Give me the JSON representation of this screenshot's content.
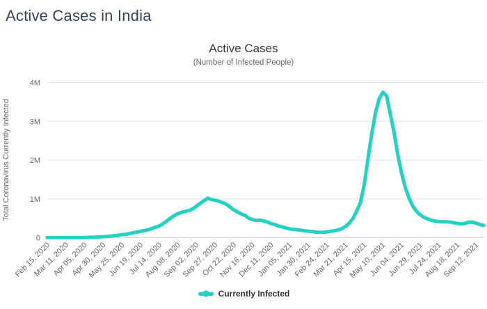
{
  "page": {
    "title": "Active Cases in India"
  },
  "colors": {
    "line": "#21d2c5",
    "page_title": "#33435c",
    "chart_title": "#333333",
    "subtitle": "#666666",
    "axis_label": "#666666",
    "grid": "#e6e6e6",
    "axis_line": "#ccd6eb",
    "legend_text": "#333333"
  },
  "chart_data": {
    "type": "line",
    "title": "Active Cases",
    "subtitle": "(Number of Infected People)",
    "ylabel": "Total Coronavirus Currently Infected",
    "ylim": [
      0,
      4000000
    ],
    "grid": true,
    "legend_position": "bottom",
    "yticks": [
      {
        "value": 0,
        "label": "0"
      },
      {
        "value": 1000000,
        "label": "1M"
      },
      {
        "value": 2000000,
        "label": "2M"
      },
      {
        "value": 3000000,
        "label": "3M"
      },
      {
        "value": 4000000,
        "label": "4M"
      }
    ],
    "xtick_every": 5,
    "xtick_labels": [
      "Feb 15, 2020",
      "Mar 11, 2020",
      "Apr 05, 2020",
      "Apr 30, 2020",
      "May 25, 2020",
      "Jun 19, 2020",
      "Jul 14, 2020",
      "Aug 08, 2020",
      "Sep 02, 2020",
      "Sep 27, 2020",
      "Oct 22, 2020",
      "Nov 16, 2020",
      "Dec 11, 2020",
      "Jan 05, 2021",
      "Jan 30, 2021",
      "Feb 24, 2021",
      "Mar 21, 2021",
      "Apr 15, 2021",
      "May 10, 2021",
      "Jun 04, 2021",
      "Jun 29, 2021",
      "Jul 24, 2021",
      "Aug 18, 2021",
      "Sep 12, 2021"
    ],
    "legend": [
      {
        "label": "Currently Infected"
      }
    ],
    "series": [
      {
        "name": "Currently Infected",
        "dates": [
          "2020-02-15",
          "2020-02-20",
          "2020-02-25",
          "2020-03-01",
          "2020-03-06",
          "2020-03-11",
          "2020-03-16",
          "2020-03-21",
          "2020-03-26",
          "2020-03-31",
          "2020-04-05",
          "2020-04-10",
          "2020-04-15",
          "2020-04-20",
          "2020-04-25",
          "2020-04-30",
          "2020-05-05",
          "2020-05-10",
          "2020-05-15",
          "2020-05-20",
          "2020-05-25",
          "2020-05-30",
          "2020-06-04",
          "2020-06-09",
          "2020-06-14",
          "2020-06-19",
          "2020-06-24",
          "2020-06-29",
          "2020-07-04",
          "2020-07-09",
          "2020-07-14",
          "2020-07-19",
          "2020-07-24",
          "2020-07-29",
          "2020-08-03",
          "2020-08-08",
          "2020-08-13",
          "2020-08-18",
          "2020-08-23",
          "2020-08-28",
          "2020-09-02",
          "2020-09-07",
          "2020-09-12",
          "2020-09-17",
          "2020-09-22",
          "2020-09-27",
          "2020-10-02",
          "2020-10-07",
          "2020-10-12",
          "2020-10-17",
          "2020-10-22",
          "2020-10-27",
          "2020-11-01",
          "2020-11-06",
          "2020-11-11",
          "2020-11-16",
          "2020-11-21",
          "2020-11-26",
          "2020-12-01",
          "2020-12-06",
          "2020-12-11",
          "2020-12-16",
          "2020-12-21",
          "2020-12-26",
          "2020-12-31",
          "2021-01-05",
          "2021-01-10",
          "2021-01-15",
          "2021-01-20",
          "2021-01-25",
          "2021-01-30",
          "2021-02-04",
          "2021-02-09",
          "2021-02-14",
          "2021-02-19",
          "2021-02-24",
          "2021-03-01",
          "2021-03-06",
          "2021-03-11",
          "2021-03-16",
          "2021-03-21",
          "2021-03-26",
          "2021-03-31",
          "2021-04-05",
          "2021-04-10",
          "2021-04-15",
          "2021-04-20",
          "2021-04-25",
          "2021-04-30",
          "2021-05-05",
          "2021-05-10",
          "2021-05-15",
          "2021-05-20",
          "2021-05-25",
          "2021-05-30",
          "2021-06-04",
          "2021-06-09",
          "2021-06-14",
          "2021-06-19",
          "2021-06-24",
          "2021-06-29",
          "2021-07-04",
          "2021-07-09",
          "2021-07-14",
          "2021-07-19",
          "2021-07-24",
          "2021-07-29",
          "2021-08-03",
          "2021-08-08",
          "2021-08-13",
          "2021-08-18",
          "2021-08-23",
          "2021-08-28",
          "2021-09-02",
          "2021-09-07",
          "2021-09-12",
          "2021-09-17",
          "2021-09-22"
        ],
        "values": [
          3,
          3,
          3,
          3,
          28,
          60,
          110,
          300,
          650,
          1200,
          3900,
          6600,
          10400,
          14200,
          19000,
          24600,
          32200,
          41300,
          51400,
          63600,
          77000,
          86400,
          104000,
          125000,
          143000,
          163000,
          183000,
          203000,
          235000,
          269000,
          301000,
          358000,
          426000,
          496000,
          567000,
          619000,
          653000,
          676000,
          697000,
          745000,
          810000,
          883000,
          952000,
          1017000,
          983000,
          963000,
          940000,
          902000,
          861000,
          793000,
          716000,
          665000,
          612000,
          574000,
          503000,
          465000,
          444000,
          455000,
          432000,
          403000,
          363000,
          339000,
          300000,
          278000,
          250000,
          227000,
          213000,
          204000,
          192000,
          177000,
          169000,
          157000,
          143000,
          136000,
          139000,
          151000,
          165000,
          177000,
          197000,
          233000,
          291000,
          377000,
          498000,
          690000,
          911000,
          1366000,
          2032000,
          2670000,
          3211000,
          3576000,
          3745000,
          3655000,
          3181000,
          2711000,
          2137000,
          1673000,
          1294000,
          1025000,
          817000,
          681000,
          588000,
          524000,
          485000,
          448000,
          429000,
          413000,
          407000,
          410000,
          401000,
          387000,
          366000,
          354000,
          366000,
          402000,
          398000,
          375000,
          340000,
          315000
        ]
      }
    ]
  }
}
